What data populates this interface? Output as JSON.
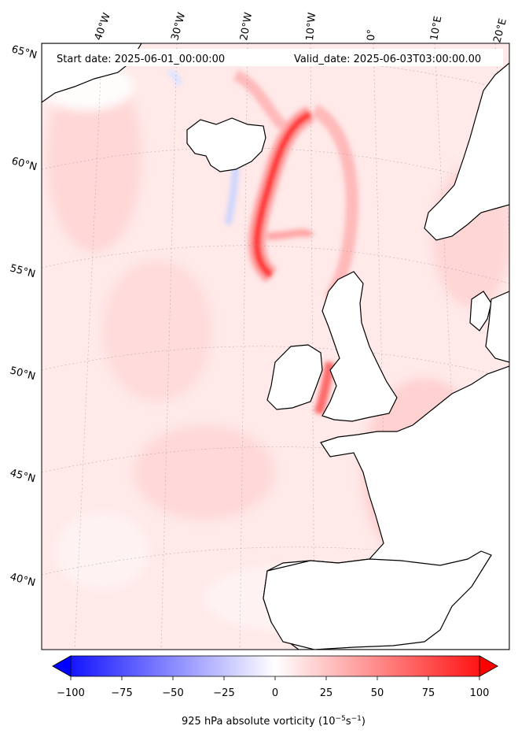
{
  "header": {
    "start_date": "Start date: 2025-06-01_00:00:00",
    "valid_date": "Valid_date: 2025-06-03T03:00:00.00"
  },
  "longitude_labels": [
    "40°W",
    "30°W",
    "20°W",
    "10°W",
    "0°",
    "10°E",
    "20°E"
  ],
  "latitude_labels": [
    "65°N",
    "60°N",
    "55°N",
    "50°N",
    "45°N",
    "40°N"
  ],
  "colorbar": {
    "ticks": [
      "−100",
      "−75",
      "−50",
      "−25",
      "0",
      "25",
      "50",
      "75",
      "100"
    ],
    "min": -100,
    "max": 100,
    "low_color": "#0000ff",
    "mid_color": "#ffffff",
    "high_color": "#ff0000",
    "title_main": "925 hPa absolute vorticity (10",
    "title_exp1": "−5",
    "title_mid": "s",
    "title_exp2": "−1",
    "title_end": ")"
  }
}
